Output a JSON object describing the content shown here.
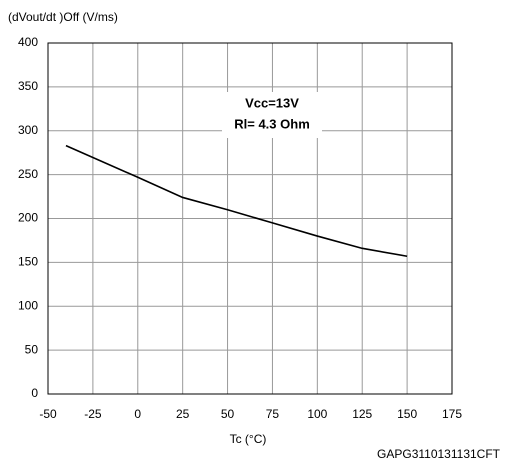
{
  "chart_data": {
    "type": "line",
    "y_label": "(dVout/dt )Off (V/ms)",
    "x_label": "Tc (°C)",
    "annotations": [
      "Vcc=13V",
      "Rl= 4.3 Ohm"
    ],
    "footer": "GAPG3110131131CFT",
    "x": [
      -40,
      0,
      25,
      50,
      75,
      100,
      125,
      150
    ],
    "series": [
      {
        "color": "#000000",
        "values": [
          283,
          247,
          224,
          210,
          195,
          180,
          166,
          157
        ]
      }
    ],
    "xlim": [
      -50,
      175
    ],
    "xticks": [
      -50,
      -25,
      0,
      25,
      50,
      75,
      100,
      125,
      150,
      175
    ],
    "ylim": [
      0,
      400
    ],
    "yticks": [
      0,
      50,
      100,
      150,
      200,
      250,
      300,
      350,
      400
    ],
    "grid": true
  }
}
